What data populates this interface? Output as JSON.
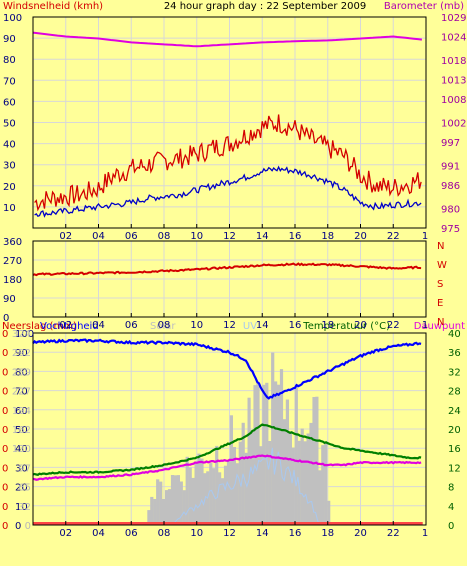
{
  "header": {
    "left": "Windsnelheid (kmh)",
    "center": "24 hour graph day : 22 September 2009",
    "right": "Barometer (mb)"
  },
  "colors": {
    "background": "#ffff99",
    "grid": "#d8d8d8",
    "axis_text": "#000080",
    "wind": "#d40000",
    "wind_avg": "#0000c8",
    "barometer": "#e000e0",
    "direction": "#d40000",
    "humidity": "#0000ff",
    "temperature": "#007f00",
    "dewpoint": "#e000e0",
    "solar": "#c0c0c0",
    "uv": "#a8c8f0",
    "rain": "#ff4444",
    "header_right": "#b000b0",
    "panel3_right": "#006000"
  },
  "panel3_labels": {
    "rain": "Neerslag (mm)",
    "humidity": "Vochtigheid",
    "solar": "Solar",
    "uv": "UV",
    "temperature": "Temperatuur (°C)",
    "dewpoint": "Dauwpunt"
  },
  "time_ticks": [
    "02",
    "04",
    "06",
    "08",
    "10",
    "12",
    "14",
    "16",
    "18",
    "20",
    "22"
  ],
  "chart_data": [
    {
      "type": "line",
      "title": "24 hour graph day : 22 September 2009",
      "x_range_hours": [
        0,
        24
      ],
      "y_left": {
        "label": "Windsnelheid (kmh)",
        "ticks": [
          "10",
          "20",
          "30",
          "40",
          "50",
          "60",
          "70",
          "80",
          "90",
          "100"
        ],
        "range": [
          0,
          100
        ]
      },
      "y_right": {
        "label": "Barometer (mb)",
        "ticks": [
          "975",
          "980",
          "986",
          "991",
          "997",
          "1002",
          "1008",
          "1013",
          "1018",
          "1024",
          "1029"
        ],
        "range": [
          975,
          1029
        ]
      },
      "series": [
        {
          "name": "Windsnelheid (kmh)",
          "axis": "left",
          "x": [
            0,
            1,
            2,
            3,
            4,
            5,
            6,
            7,
            8,
            9,
            10,
            11,
            12,
            13,
            14,
            15,
            16,
            17,
            18,
            19,
            20,
            21,
            22,
            23.8
          ],
          "y": [
            12,
            14,
            15,
            16,
            19,
            25,
            28,
            30,
            32,
            33,
            35,
            38,
            40,
            44,
            48,
            50,
            47,
            42,
            38,
            34,
            25,
            20,
            19,
            23
          ]
        },
        {
          "name": "Gemiddelde windsnelheid (kmh)",
          "axis": "left",
          "x": [
            0,
            1,
            2,
            3,
            4,
            5,
            6,
            7,
            8,
            9,
            10,
            11,
            12,
            13,
            14,
            15,
            16,
            17,
            18,
            19,
            20,
            21,
            22,
            23.8
          ],
          "y": [
            7,
            7,
            8,
            9,
            10,
            11,
            12,
            14,
            15,
            16,
            18,
            20,
            22,
            24,
            27,
            28,
            27,
            25,
            22,
            18,
            12,
            10,
            11,
            12
          ]
        },
        {
          "name": "Barometer (mb)",
          "axis": "right",
          "x": [
            0,
            2,
            4,
            6,
            8,
            10,
            12,
            14,
            16,
            18,
            20,
            22,
            23.8
          ],
          "y": [
            1025,
            1024,
            1023.5,
            1022.5,
            1022,
            1021.5,
            1022,
            1022.5,
            1022.8,
            1023,
            1023.5,
            1024,
            1023.2
          ]
        }
      ]
    },
    {
      "type": "line",
      "x_range_hours": [
        0,
        24
      ],
      "y_left": {
        "ticks": [
          "0",
          "90",
          "180",
          "270",
          "360"
        ],
        "range": [
          0,
          360
        ]
      },
      "y_right": {
        "ticks": [
          "N",
          "W",
          "S",
          "E",
          "N"
        ]
      },
      "series": [
        {
          "name": "Windrichting",
          "x": [
            0,
            2,
            4,
            6,
            8,
            10,
            12,
            14,
            16,
            18,
            20,
            22,
            23.8
          ],
          "y": [
            202,
            205,
            208,
            212,
            218,
            225,
            235,
            245,
            250,
            248,
            240,
            230,
            236
          ]
        }
      ]
    },
    {
      "type": "line",
      "x_range_hours": [
        0,
        24
      ],
      "y_left": {
        "label": "Neerslag (mm)",
        "ticks": [
          "0",
          "0",
          "0",
          "0",
          "0",
          "0",
          "0",
          "0",
          "0",
          "0",
          "0"
        ],
        "range": [
          0,
          1
        ]
      },
      "y_left2": {
        "label": "Vochtigheid",
        "ticks": [
          "0",
          "10",
          "20",
          "30",
          "40",
          "50",
          "60",
          "70",
          "80",
          "90",
          "100"
        ],
        "range": [
          0,
          100
        ]
      },
      "y_left3": {
        "label": "Solar",
        "ticks": [
          "0",
          "32",
          "65",
          "97",
          "130",
          "162",
          "194",
          "227",
          "259",
          "292",
          "324"
        ],
        "range": [
          0,
          324
        ]
      },
      "y_right": {
        "label": "Temperatuur (°C)",
        "ticks": [
          "0",
          "4",
          "8",
          "12",
          "16",
          "20",
          "24",
          "28",
          "32",
          "36",
          "40"
        ],
        "range": [
          0,
          40
        ]
      },
      "series": [
        {
          "name": "Vochtigheid",
          "axis": "left2",
          "x": [
            0,
            2,
            4,
            6,
            8,
            10,
            12,
            13,
            14,
            14.3,
            15,
            16,
            17,
            18,
            19,
            20,
            21,
            22,
            23,
            23.8
          ],
          "y": [
            95,
            96,
            96,
            95,
            95,
            94,
            90,
            86,
            70,
            66,
            68,
            72,
            76,
            80,
            84,
            88,
            91,
            93,
            94,
            95
          ]
        },
        {
          "name": "Temperatuur (°C)",
          "axis": "right",
          "x": [
            0,
            2,
            4,
            6,
            8,
            10,
            12,
            13,
            14,
            15,
            16,
            17,
            18,
            19,
            20,
            21,
            22,
            23,
            23.8
          ],
          "y": [
            10.5,
            11,
            11,
            11.5,
            12.5,
            14,
            17,
            18.5,
            21,
            20,
            19,
            18,
            17,
            16,
            15.5,
            15,
            14.5,
            14,
            14
          ]
        },
        {
          "name": "Dauwpunt",
          "axis": "right",
          "x": [
            0,
            2,
            4,
            6,
            8,
            10,
            12,
            13,
            14,
            15,
            16,
            17,
            18,
            19,
            20,
            21,
            22,
            23,
            23.8
          ],
          "y": [
            9.5,
            10,
            10,
            10.5,
            11.5,
            13,
            13.5,
            14,
            14.5,
            14,
            13.5,
            13,
            12.5,
            12.5,
            13,
            13,
            13,
            13,
            13
          ]
        },
        {
          "name": "Solar",
          "axis": "left3",
          "x": [
            6.8,
            7,
            8,
            9,
            10,
            11,
            12,
            13,
            13.5,
            14,
            14.5,
            15,
            15.5,
            16,
            16.5,
            17,
            17.5,
            17.9,
            18
          ],
          "y": [
            0,
            60,
            90,
            120,
            140,
            160,
            180,
            200,
            230,
            270,
            300,
            260,
            280,
            240,
            250,
            220,
            200,
            170,
            0
          ]
        },
        {
          "name": "UV",
          "axis": "left3",
          "x": [
            8.5,
            9,
            10,
            11,
            12,
            13,
            14,
            14.5,
            15,
            16,
            17,
            17.5
          ],
          "y": [
            0,
            15,
            35,
            55,
            70,
            85,
            100,
            115,
            110,
            80,
            40,
            0
          ]
        },
        {
          "name": "Neerslag (mm)",
          "axis": "left",
          "x": [
            0,
            23.8
          ],
          "y": [
            0,
            0
          ]
        }
      ]
    }
  ]
}
